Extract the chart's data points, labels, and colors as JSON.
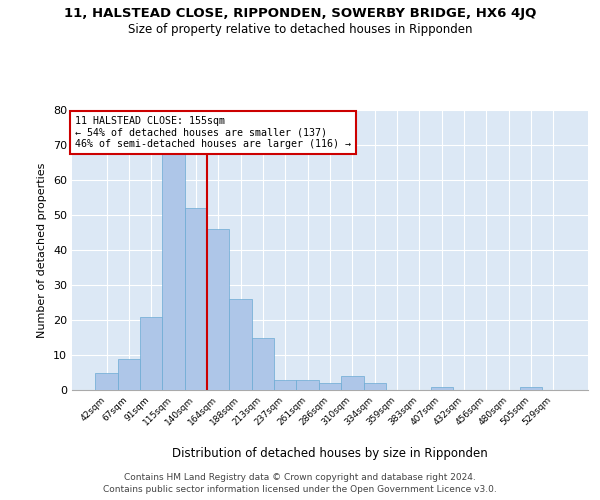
{
  "title": "11, HALSTEAD CLOSE, RIPPONDEN, SOWERBY BRIDGE, HX6 4JQ",
  "subtitle": "Size of property relative to detached houses in Ripponden",
  "xlabel": "Distribution of detached houses by size in Ripponden",
  "ylabel": "Number of detached properties",
  "categories": [
    "42sqm",
    "67sqm",
    "91sqm",
    "115sqm",
    "140sqm",
    "164sqm",
    "188sqm",
    "213sqm",
    "237sqm",
    "261sqm",
    "286sqm",
    "310sqm",
    "334sqm",
    "359sqm",
    "383sqm",
    "407sqm",
    "432sqm",
    "456sqm",
    "480sqm",
    "505sqm",
    "529sqm"
  ],
  "values": [
    5,
    9,
    21,
    68,
    52,
    46,
    26,
    15,
    3,
    3,
    2,
    4,
    2,
    0,
    0,
    1,
    0,
    0,
    0,
    1,
    0
  ],
  "bar_color": "#aec6e8",
  "bar_edge_color": "#6aaad4",
  "background_color": "#dce8f5",
  "ylim": [
    0,
    80
  ],
  "yticks": [
    0,
    10,
    20,
    30,
    40,
    50,
    60,
    70,
    80
  ],
  "property_line_x": 4.5,
  "annotation_text": "11 HALSTEAD CLOSE: 155sqm\n← 54% of detached houses are smaller (137)\n46% of semi-detached houses are larger (116) →",
  "annotation_box_color": "#ffffff",
  "annotation_box_edge": "#cc0000",
  "red_line_color": "#cc0000",
  "footer_line1": "Contains HM Land Registry data © Crown copyright and database right 2024.",
  "footer_line2": "Contains public sector information licensed under the Open Government Licence v3.0."
}
